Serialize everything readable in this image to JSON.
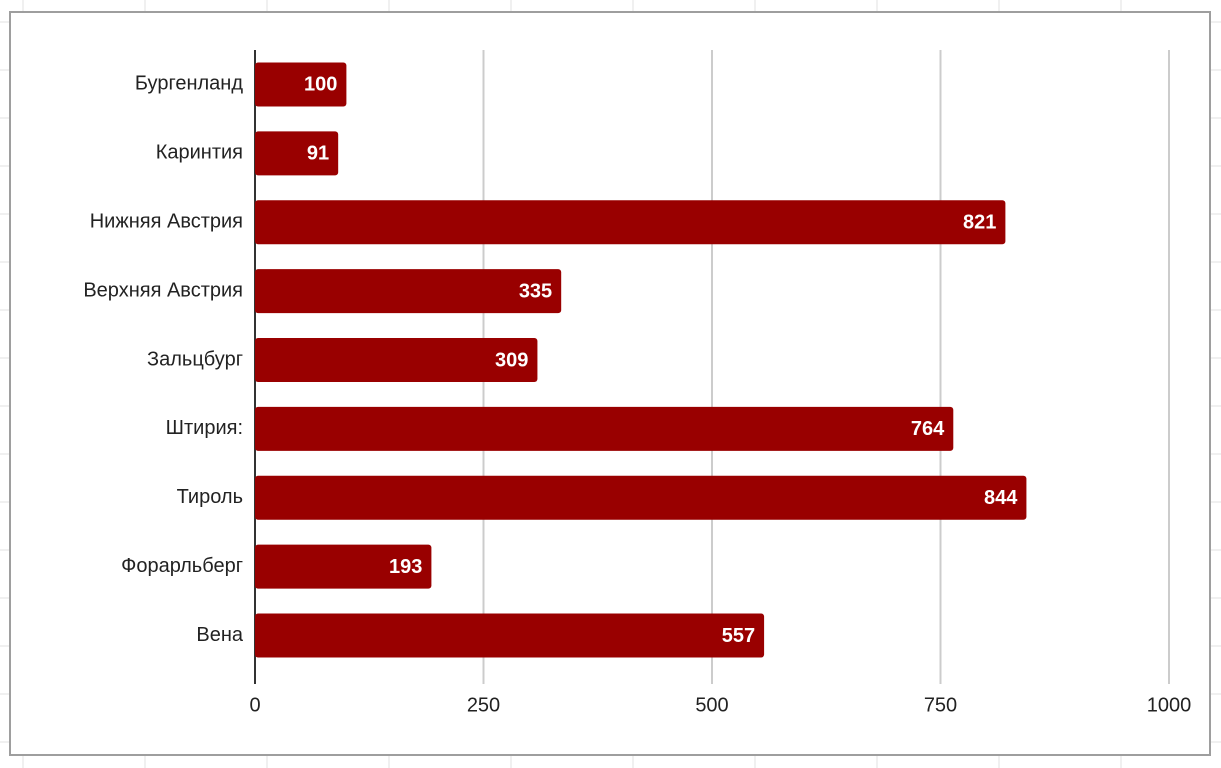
{
  "chart_data": {
    "type": "bar",
    "orientation": "horizontal",
    "categories": [
      "Бургенланд",
      "Каринтия",
      "Нижняя Австрия",
      "Верхняя Австрия",
      "Зальцбург",
      "Штирия:",
      "Тироль",
      "Форарльберг",
      "Вена"
    ],
    "values": [
      100,
      91,
      821,
      335,
      309,
      764,
      844,
      193,
      557
    ],
    "color": "#990000",
    "xlim": [
      0,
      1000
    ],
    "xticks": [
      0,
      250,
      500,
      750,
      1000
    ],
    "grid": true
  }
}
